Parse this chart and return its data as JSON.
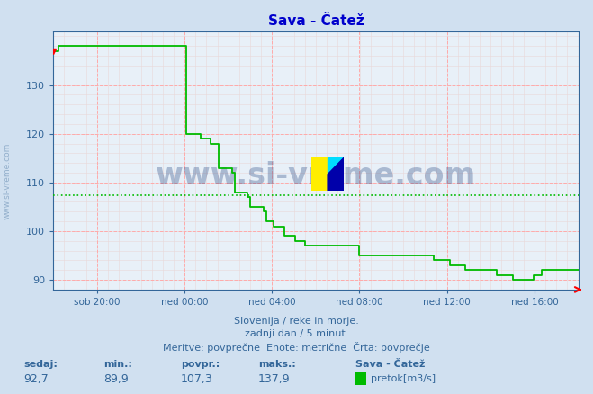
{
  "title": "Sava - Čatež",
  "bg_color": "#d0e0f0",
  "plot_bg_color": "#e8f0f8",
  "line_color": "#00bb00",
  "avg_line_color": "#00bb00",
  "avg_value": 107.3,
  "grid_color_major": "#ffaaaa",
  "grid_color_minor": "#e8d8d8",
  "ylim": [
    88,
    141
  ],
  "yticks": [
    90,
    100,
    110,
    120,
    130
  ],
  "title_color": "#0000cc",
  "tick_color": "#336699",
  "watermark_text": "www.si-vreme.com",
  "watermark_color": "#1a3a7a",
  "watermark_alpha": 0.3,
  "sidebar_text": "www.si-vreme.com",
  "sidebar_color": "#7799bb",
  "footer_line1": "Slovenija / reke in morje.",
  "footer_line2": "zadnji dan / 5 minut.",
  "footer_line3": "Meritve: povprečne  Enote: metrične  Črta: povprečje",
  "footer_color": "#336699",
  "stat_labels": [
    "sedaj:",
    "min.:",
    "povpr.:",
    "maks.:"
  ],
  "stat_values": [
    "92,7",
    "89,9",
    "107,3",
    "137,9"
  ],
  "stat_color": "#336699",
  "legend_station": "Sava - Čatež",
  "legend_label": "pretok[m3/s]",
  "legend_color": "#00bb00",
  "x_tick_labels": [
    "sob 20:00",
    "ned 00:00",
    "ned 04:00",
    "ned 08:00",
    "ned 12:00",
    "ned 16:00"
  ],
  "x_tick_positions": [
    0.0833,
    0.25,
    0.4167,
    0.5833,
    0.75,
    0.9167
  ],
  "data_x": [
    0.0,
    0.01,
    0.02,
    0.04,
    0.06,
    0.07,
    0.08,
    0.083,
    0.1,
    0.12,
    0.14,
    0.16,
    0.18,
    0.2,
    0.22,
    0.24,
    0.25,
    0.253,
    0.27,
    0.28,
    0.285,
    0.29,
    0.3,
    0.31,
    0.315,
    0.33,
    0.34,
    0.345,
    0.36,
    0.37,
    0.375,
    0.39,
    0.4,
    0.405,
    0.41,
    0.42,
    0.43,
    0.44,
    0.45,
    0.46,
    0.47,
    0.48,
    0.5,
    0.52,
    0.54,
    0.56,
    0.58,
    0.583,
    0.6,
    0.62,
    0.64,
    0.66,
    0.68,
    0.7,
    0.72,
    0.725,
    0.74,
    0.75,
    0.755,
    0.77,
    0.78,
    0.785,
    0.8,
    0.82,
    0.84,
    0.845,
    0.86,
    0.87,
    0.875,
    0.9,
    0.91,
    0.915,
    0.93,
    0.95,
    0.97,
    0.99,
    1.0
  ],
  "data_y": [
    137,
    138,
    138,
    138,
    138,
    138,
    138,
    138,
    138,
    138,
    138,
    138,
    138,
    138,
    138,
    138,
    138,
    120,
    120,
    119,
    119,
    119,
    118,
    118,
    113,
    113,
    112,
    108,
    108,
    107,
    105,
    105,
    104,
    102,
    102,
    101,
    101,
    99,
    99,
    98,
    98,
    97,
    97,
    97,
    97,
    97,
    97,
    95,
    95,
    95,
    95,
    95,
    95,
    95,
    95,
    94,
    94,
    94,
    93,
    93,
    93,
    92,
    92,
    92,
    92,
    91,
    91,
    91,
    90,
    90,
    90,
    91,
    92,
    92,
    92,
    92,
    92
  ]
}
